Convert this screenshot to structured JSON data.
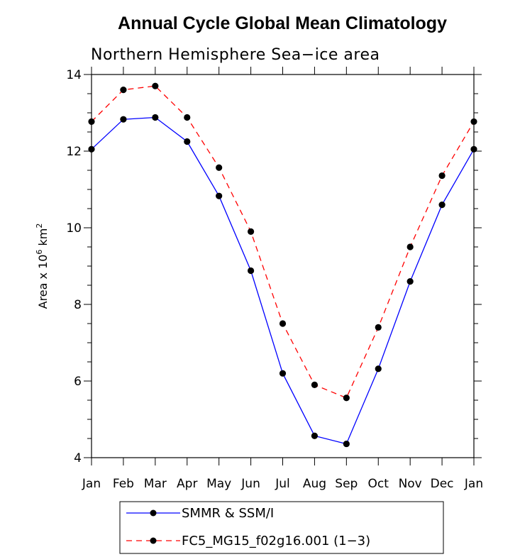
{
  "chart_data": {
    "type": "line",
    "title": "Annual Cycle Global Mean Climatology",
    "subtitle": "Northern Hemisphere Sea−ice area",
    "xlabel": "",
    "ylabel": {
      "prefix": "Area x 10",
      "exp1": "6",
      "mid": " km",
      "exp2": "2"
    },
    "categories": [
      "Jan",
      "Feb",
      "Mar",
      "Apr",
      "May",
      "Jun",
      "Jul",
      "Aug",
      "Sep",
      "Oct",
      "Nov",
      "Dec",
      "Jan"
    ],
    "ylim": [
      4,
      14
    ],
    "yticks": [
      4,
      6,
      8,
      10,
      12,
      14
    ],
    "ytick_labels": [
      "4",
      "6",
      "8",
      "10",
      "12",
      "14"
    ],
    "series": [
      {
        "name": "SMMR & SSM/I",
        "color": "#0000ff",
        "dash": "solid",
        "values": [
          12.05,
          12.83,
          12.88,
          12.25,
          10.83,
          8.88,
          6.2,
          4.57,
          4.36,
          6.32,
          8.6,
          10.6,
          12.05
        ]
      },
      {
        "name": "FC5_MG15_f02g16.001 (1−3)",
        "color": "#ff0000",
        "dash": "dashed",
        "values": [
          12.77,
          13.6,
          13.7,
          12.88,
          11.57,
          9.9,
          7.5,
          5.9,
          5.56,
          7.4,
          9.5,
          11.36,
          12.77
        ]
      }
    ],
    "legend_position": "bottom-center"
  }
}
